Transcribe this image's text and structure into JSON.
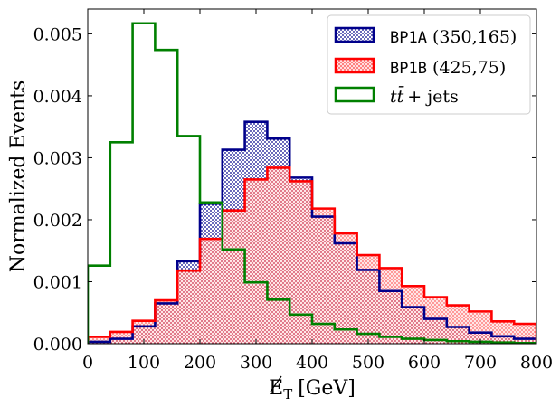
{
  "chart_data": {
    "type": "histogram",
    "xlabel": "E_T [GeV]",
    "xlabel_symbol": "E",
    "xlabel_subscript": "T",
    "xlabel_unit": "[GeV]",
    "ylabel": "Normalized Events",
    "xlim": [
      0,
      800
    ],
    "ylim": [
      0,
      0.0054
    ],
    "x_ticks": [
      0,
      100,
      200,
      300,
      400,
      500,
      600,
      700,
      800
    ],
    "x_tick_labels": [
      "0",
      "100",
      "200",
      "300",
      "400",
      "500",
      "600",
      "700",
      "800"
    ],
    "y_ticks": [
      0,
      0.001,
      0.002,
      0.003,
      0.004,
      0.005
    ],
    "y_tick_labels": [
      "0.000",
      "0.001",
      "0.002",
      "0.003",
      "0.004",
      "0.005"
    ],
    "bin_edges": [
      0,
      40,
      80,
      120,
      160,
      200,
      240,
      280,
      320,
      360,
      400,
      440,
      480,
      520,
      560,
      600,
      640,
      680,
      720,
      760,
      800
    ],
    "legend_position": "top-right",
    "series": [
      {
        "name": "BP1A",
        "label_code": "BP1A",
        "label_params": "(350,165)",
        "values": [
          3e-05,
          8e-05,
          0.00028,
          0.00065,
          0.00133,
          0.00226,
          0.00313,
          0.00358,
          0.00331,
          0.00268,
          0.00205,
          0.00162,
          0.00119,
          0.00085,
          0.00059,
          0.0004,
          0.00027,
          0.00018,
          0.00012,
          8e-05
        ],
        "edge_color": "#00008b",
        "fill_color": "#8b8bcf",
        "hatch": "dots"
      },
      {
        "name": "BP1B",
        "label_code": "BP1B",
        "label_params": "(425,75)",
        "values": [
          0.00011,
          0.00019,
          0.00037,
          0.0007,
          0.00118,
          0.00169,
          0.00215,
          0.00265,
          0.00284,
          0.00262,
          0.00218,
          0.00178,
          0.00143,
          0.00122,
          0.00093,
          0.00075,
          0.00062,
          0.00052,
          0.00036,
          0.00032
        ],
        "edge_color": "#ff0000",
        "fill_color": "#f0a0a0",
        "hatch": "dots"
      },
      {
        "name": "ttbar+jets",
        "label_main": "tt̄",
        "label_suffix": "+ jets",
        "values": [
          0.00126,
          0.00325,
          0.00517,
          0.00474,
          0.00335,
          0.00228,
          0.00152,
          0.00099,
          0.00071,
          0.00047,
          0.00032,
          0.00023,
          0.00016,
          0.00011,
          8e-05,
          6e-05,
          4e-05,
          3e-05,
          2e-05,
          1e-05
        ],
        "edge_color": "#008000",
        "fill_color": "none",
        "hatch": "none"
      }
    ]
  }
}
